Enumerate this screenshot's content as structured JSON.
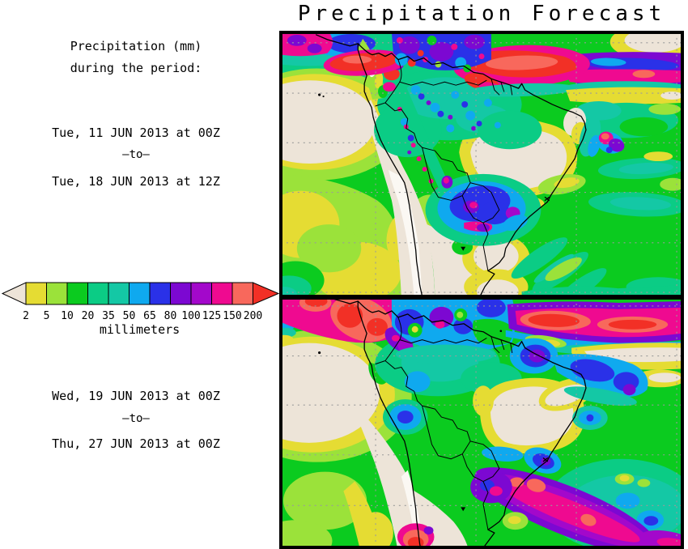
{
  "title": "Precipitation Forecast",
  "sidebar": {
    "heading_line1": "Precipitation (mm)",
    "heading_line2": "during the period:",
    "period1": {
      "start": "Tue, 11 JUN 2013 at 00Z",
      "separator": "–to–",
      "end": "Tue, 18 JUN 2013 at 12Z"
    },
    "period2": {
      "start": "Wed, 19 JUN 2013 at 00Z",
      "separator": "–to–",
      "end": "Thu, 27 JUN 2013 at 00Z"
    }
  },
  "legend": {
    "unit": "millimeters",
    "ticks": [
      "2",
      "5",
      "10",
      "20",
      "35",
      "50",
      "65",
      "80",
      "100",
      "125",
      "150",
      "200"
    ],
    "segment_colors": [
      "#E5DC33",
      "#9BE23A",
      "#0BCB1F",
      "#0BCC85",
      "#14C8A5",
      "#0FA9EF",
      "#2A31E8",
      "#7C08D2",
      "#A308CB",
      "#EF0A90",
      "#F8685C"
    ],
    "under_range_color": "#EDE4D8",
    "over_range_color": "#F23026"
  },
  "map": {
    "region": "South America",
    "panels": [
      {
        "id": "week1",
        "period_start": "Tue, 11 JUN 2013 at 00Z",
        "period_end": "Tue, 18 JUN 2013 at 12Z"
      },
      {
        "id": "week2",
        "period_start": "Wed, 19 JUN 2013 at 00Z",
        "period_end": "Thu, 27 JUN 2013 at 00Z"
      }
    ]
  }
}
